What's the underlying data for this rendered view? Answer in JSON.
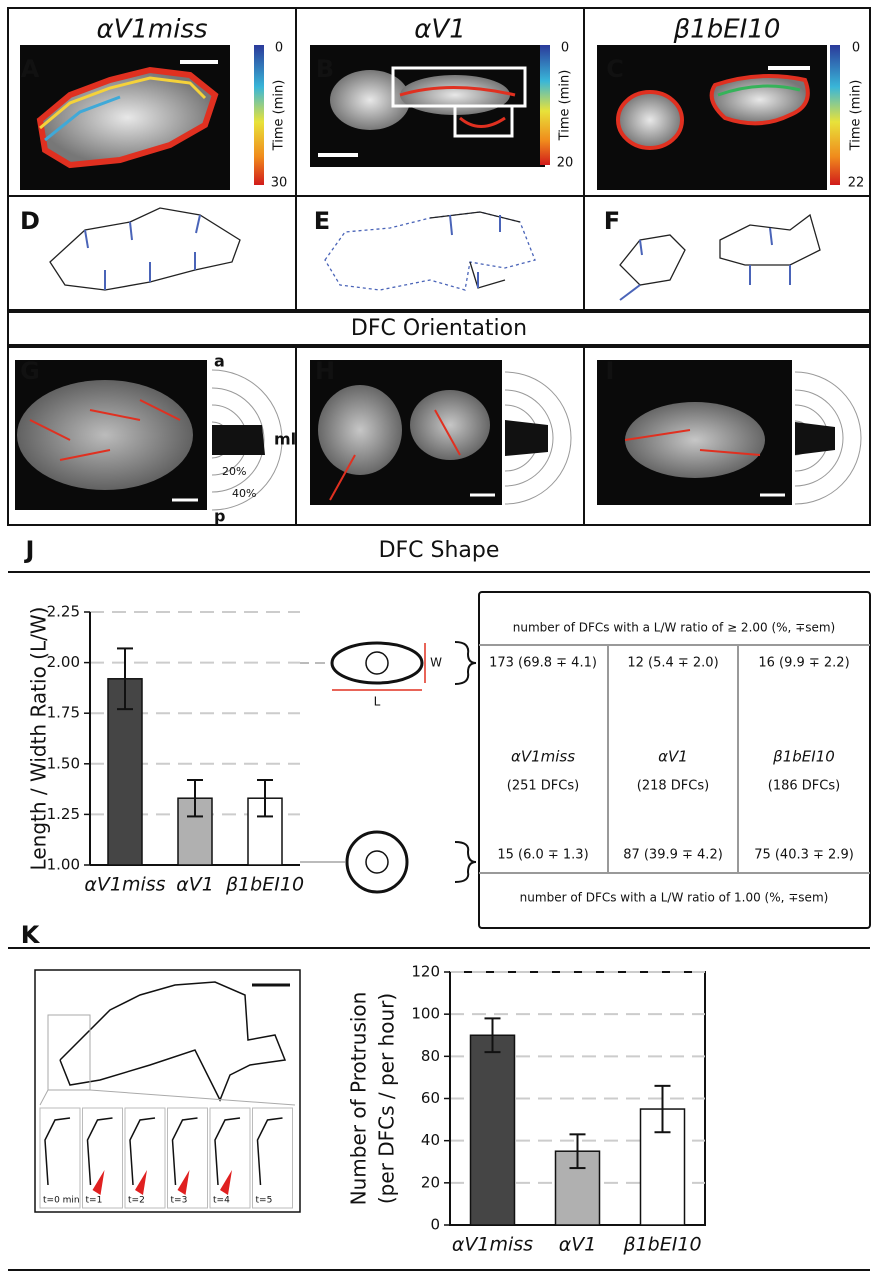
{
  "panels": {
    "top": [
      {
        "label": "A",
        "title": "αV1miss",
        "colorbar": {
          "top": "0",
          "caption": "Time (min)",
          "bottom": "30"
        }
      },
      {
        "label": "B",
        "title": "αV1",
        "colorbar": {
          "top": "0",
          "caption": "Time (min)",
          "bottom": "20"
        }
      },
      {
        "label": "C",
        "title": "β1bEI10",
        "colorbar": {
          "top": "0",
          "caption": "Time (min)",
          "bottom": "22"
        }
      }
    ],
    "middle": [
      "D",
      "E",
      "F"
    ],
    "orientation_title": "DFC Orientation",
    "orientation": [
      "G",
      "H",
      "I"
    ],
    "polar_labels": {
      "anterior": "a",
      "mediolateral": "ml",
      "posterior": "p",
      "ring1": "20%",
      "ring2": "40%"
    },
    "shape_label": "J",
    "shape_title": "DFC Shape",
    "shape_icon": {
      "width": "W",
      "length": "L"
    },
    "table": {
      "header": "number of DFCs with a L/W ratio of ≥ 2.00 (%, ∓sem)",
      "top_row": [
        "173 (69.8 ∓ 4.1)",
        "12 (5.4 ∓ 2.0)",
        "16 (9.9 ∓ 2.2)"
      ],
      "names": [
        "αV1miss",
        "αV1",
        "β1bEI10"
      ],
      "counts": [
        "(251 DFCs)",
        "(218 DFCs)",
        "(186 DFCs)"
      ],
      "bottom_row": [
        "15 (6.0 ∓ 1.3)",
        "87 (39.9 ∓ 4.2)",
        "75 (40.3 ∓ 2.9)"
      ],
      "footer": "number of DFCs with a L/W ratio of 1.00 (%, ∓sem)"
    },
    "protrusion_label": "K",
    "timeline": [
      "t=0 min",
      "t=1",
      "t=2",
      "t=3",
      "t=4",
      "t=5"
    ]
  },
  "chart_data": [
    {
      "type": "bar",
      "y_label": [
        "Length / Width Ratio (L/W)"
      ],
      "categories": [
        "αV1miss",
        "αV1",
        "β1bEI10"
      ],
      "values": [
        1.92,
        1.33,
        1.33
      ],
      "errors": [
        0.15,
        0.09,
        0.09
      ],
      "colors": [
        "#454545",
        "#b0b0b0",
        "#ffffff"
      ],
      "ylim": [
        1,
        2.25
      ],
      "yticks": [
        {
          "value": 1,
          "label": "1.00"
        },
        {
          "value": 1.25,
          "label": "1.25"
        },
        {
          "value": 1.5,
          "label": "1.50"
        },
        {
          "value": 1.75,
          "label": "1.75"
        },
        {
          "value": 2,
          "label": "2.00"
        },
        {
          "value": 2.25,
          "label": "2.25"
        }
      ],
      "grid": true
    },
    {
      "type": "bar",
      "y_label": [
        "Number of Protrusion",
        "(per DFCs / per hour)"
      ],
      "categories": [
        "αV1miss",
        "αV1",
        "β1bEI10"
      ],
      "values": [
        90,
        35,
        55
      ],
      "errors": [
        8,
        8,
        11
      ],
      "colors": [
        "#454545",
        "#b0b0b0",
        "#ffffff"
      ],
      "ylim": [
        0,
        120
      ],
      "yticks": [
        0,
        20,
        40,
        60,
        80,
        100,
        120
      ],
      "grid": true
    }
  ]
}
